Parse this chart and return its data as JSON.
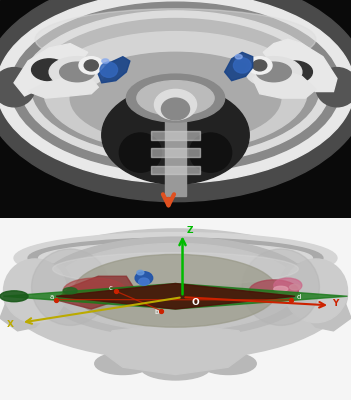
{
  "bg_color": "#ffffff",
  "top_bg": "#111111",
  "bottom_bg": "#e8e8e8",
  "arrow_color": "#e05020",
  "z_axis_color": "#00bb00",
  "x_axis_color": "#aaaa00",
  "y_axis_color": "#cc2200",
  "green_plane": "#1a6b1a",
  "dark_plane": "#5a1a08",
  "skull_light": "#d0d0d0",
  "skull_mid": "#aaaaaa",
  "skull_dark": "#888888",
  "skull_bright": "#f0f0f0",
  "ct_inner": "#444444",
  "ct_dark": "#111111",
  "ct_white": "#eeeeee",
  "blue_struct": "#2255aa",
  "blue_light": "#4488cc",
  "pink_struct": "#cc7799",
  "red_line": "#cc2200",
  "yellow_axis": "#bbaa00",
  "label_z": "Z",
  "label_x": "X",
  "label_y": "Y",
  "label_o": "O",
  "label_a": "a",
  "label_b": "b",
  "label_c": "c",
  "label_d": "d"
}
